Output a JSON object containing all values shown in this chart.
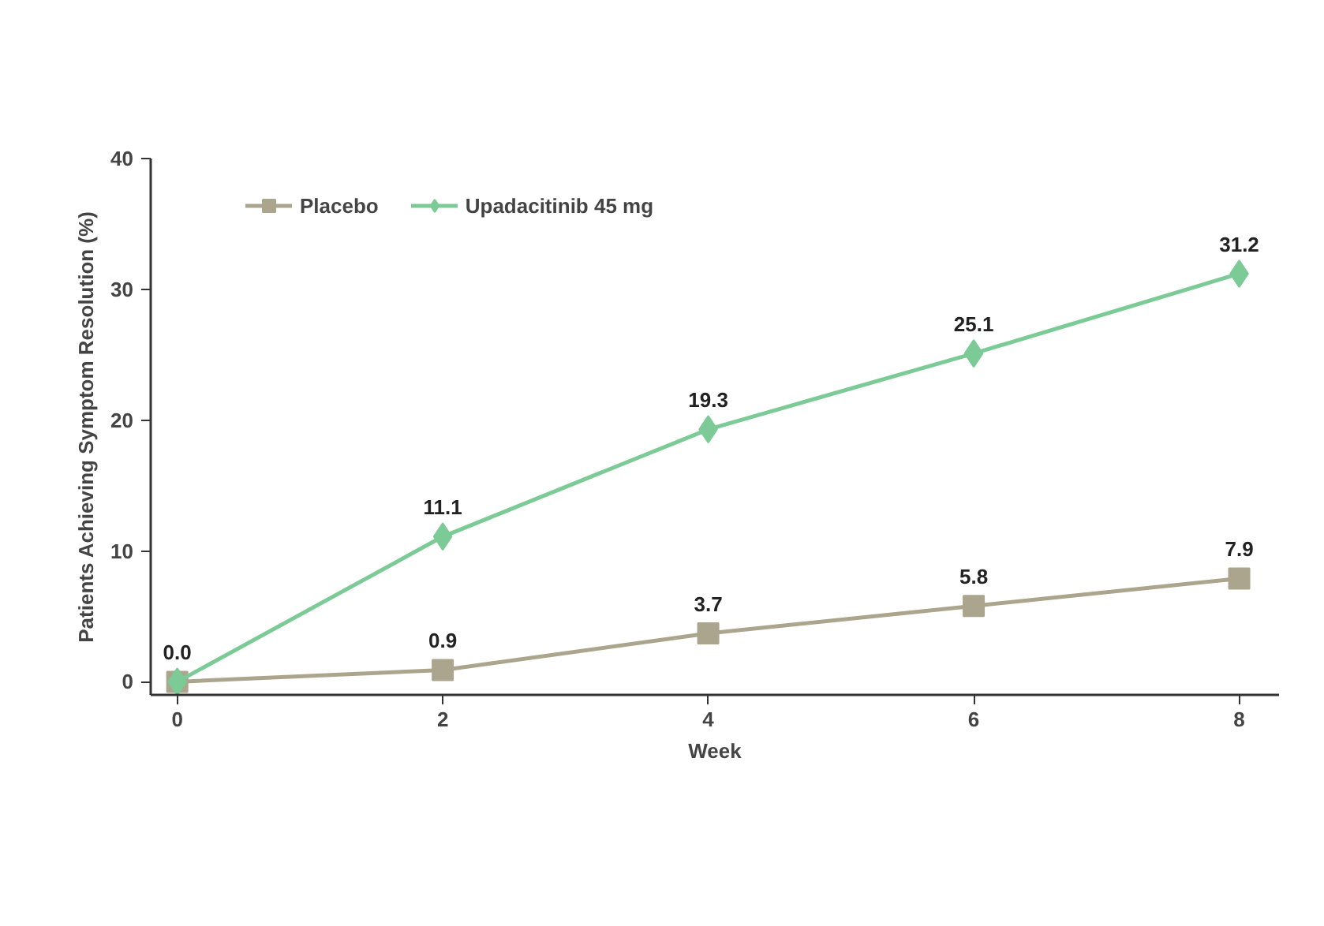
{
  "chart_data": {
    "type": "line",
    "xlabel": "Week",
    "ylabel": "Patients Achieving Symptom Resolution (%)",
    "x": [
      0,
      2,
      4,
      6,
      8
    ],
    "series": [
      {
        "name": "Placebo",
        "color": "#aca58e",
        "marker": "square",
        "values": [
          0.0,
          0.9,
          3.7,
          5.8,
          7.9
        ],
        "value_labels": [
          null,
          "0.9",
          "3.7",
          "5.8",
          "7.9"
        ]
      },
      {
        "name": "Upadacitinib 45 mg",
        "color": "#7ccb96",
        "marker": "diamond",
        "values": [
          0.0,
          11.1,
          19.3,
          25.1,
          31.2
        ],
        "value_labels": [
          "0.0",
          "11.1",
          "19.3",
          "25.1",
          "31.2"
        ]
      }
    ],
    "xlim": [
      -0.2,
      8.3
    ],
    "ylim": [
      -1,
      40
    ],
    "xticks": [
      0,
      2,
      4,
      6,
      8
    ],
    "yticks": [
      0,
      10,
      20,
      30,
      40
    ],
    "grid": false,
    "legend": "top left",
    "line_style": "solid"
  }
}
